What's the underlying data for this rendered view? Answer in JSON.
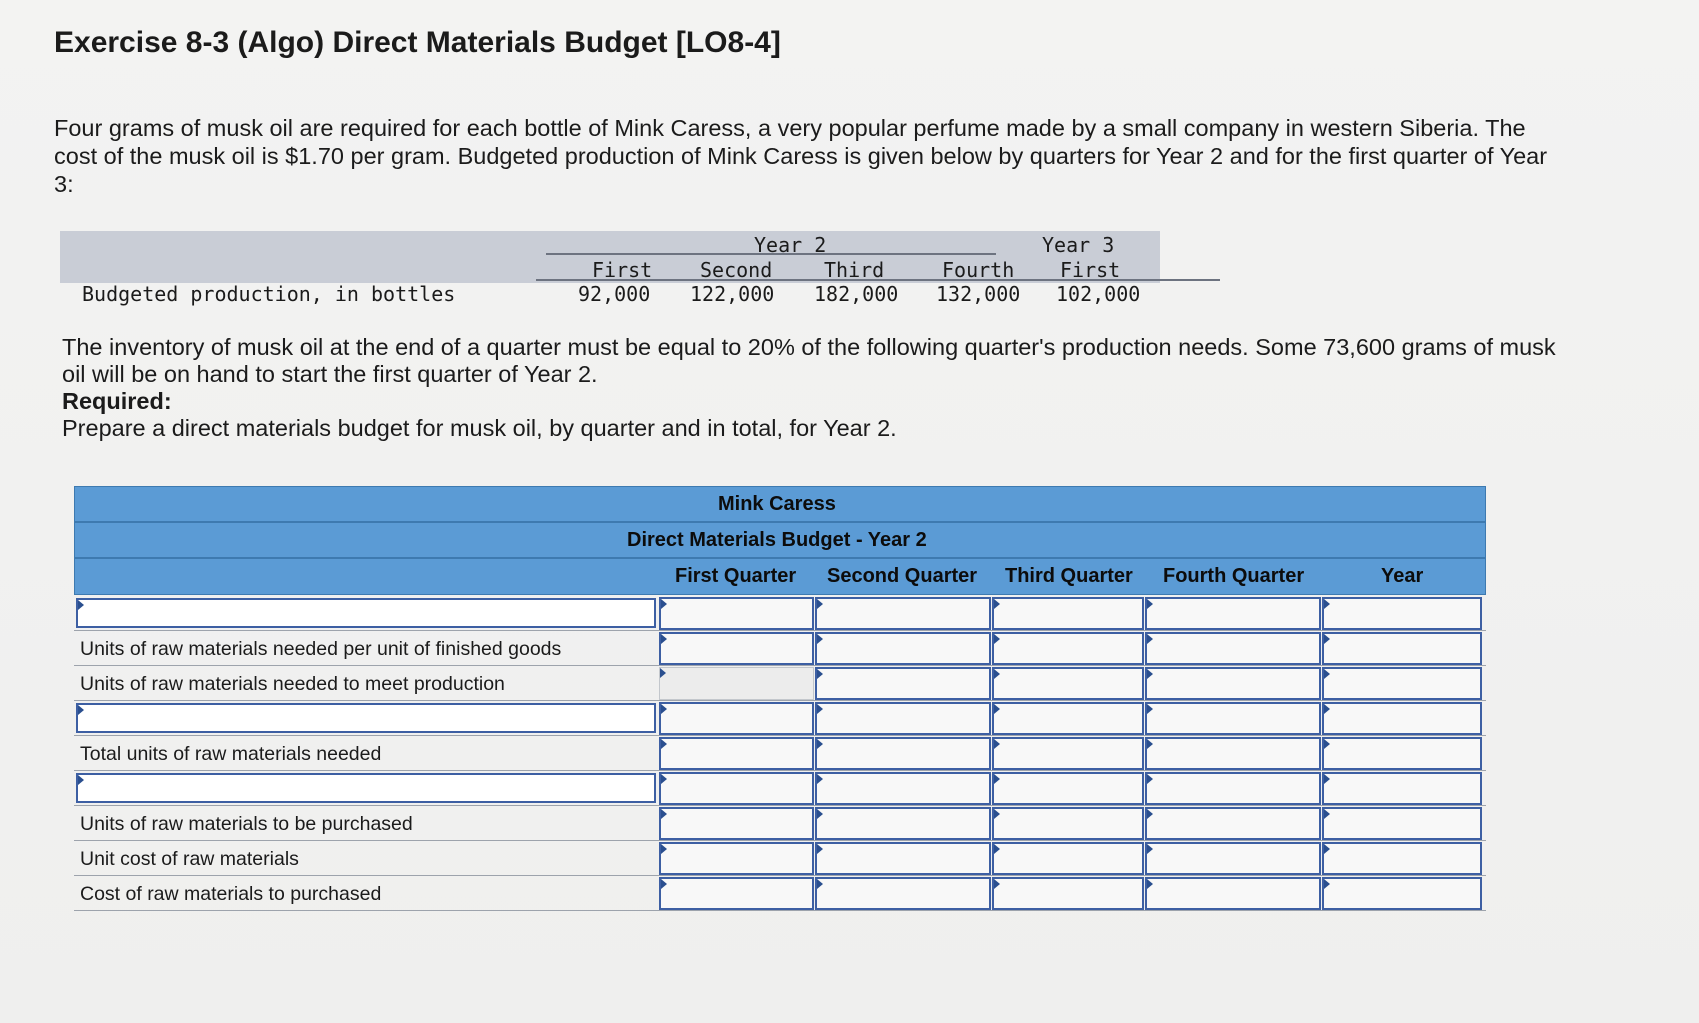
{
  "title": "Exercise 8-3 (Algo) Direct Materials Budget [LO8-4]",
  "intro": "Four grams of musk oil are required for each bottle of Mink Caress, a very popular perfume made by a small company in western Siberia. The cost of the musk oil is $1.70 per gram. Budgeted production of Mink Caress is given below by quarters for Year 2 and for the first quarter of Year 3:",
  "production": {
    "year2": "Year 2",
    "year3": "Year 3",
    "quarters": [
      "First",
      "Second",
      "Third",
      "Fourth",
      "First"
    ],
    "row_label": "Budgeted production, in bottles",
    "values": [
      "92,000",
      "122,000",
      "182,000",
      "132,000",
      "102,000"
    ]
  },
  "inventory_text": "The inventory of musk oil at the end of a quarter must be equal to 20% of the following quarter's production needs. Some 73,600 grams of musk oil will be on hand to start the first quarter of Year 2.",
  "required_heading": "Required:",
  "required_text": "Prepare a direct materials budget for musk oil, by quarter and in total, for Year 2.",
  "budget": {
    "company": "Mink Caress",
    "subtitle": "Direct Materials Budget - Year 2",
    "columns": [
      "First Quarter",
      "Second Quarter",
      "Third Quarter",
      "Fourth Quarter",
      "Year"
    ],
    "rows": [
      {
        "label": "",
        "input": true
      },
      {
        "label": "Units of raw materials needed per unit of finished goods",
        "input": false
      },
      {
        "label": "Units of raw materials needed to meet production",
        "input": false
      },
      {
        "label": "",
        "input": true
      },
      {
        "label": "Total units of raw materials needed",
        "input": false
      },
      {
        "label": "",
        "input": true
      },
      {
        "label": "Units of raw materials to be purchased",
        "input": false
      },
      {
        "label": "Unit cost of raw materials",
        "input": false
      },
      {
        "label": "Cost of raw materials to purchased",
        "input": false
      }
    ]
  },
  "colors": {
    "header_blue": "#5b9bd5",
    "input_border": "#3d5fa3"
  }
}
